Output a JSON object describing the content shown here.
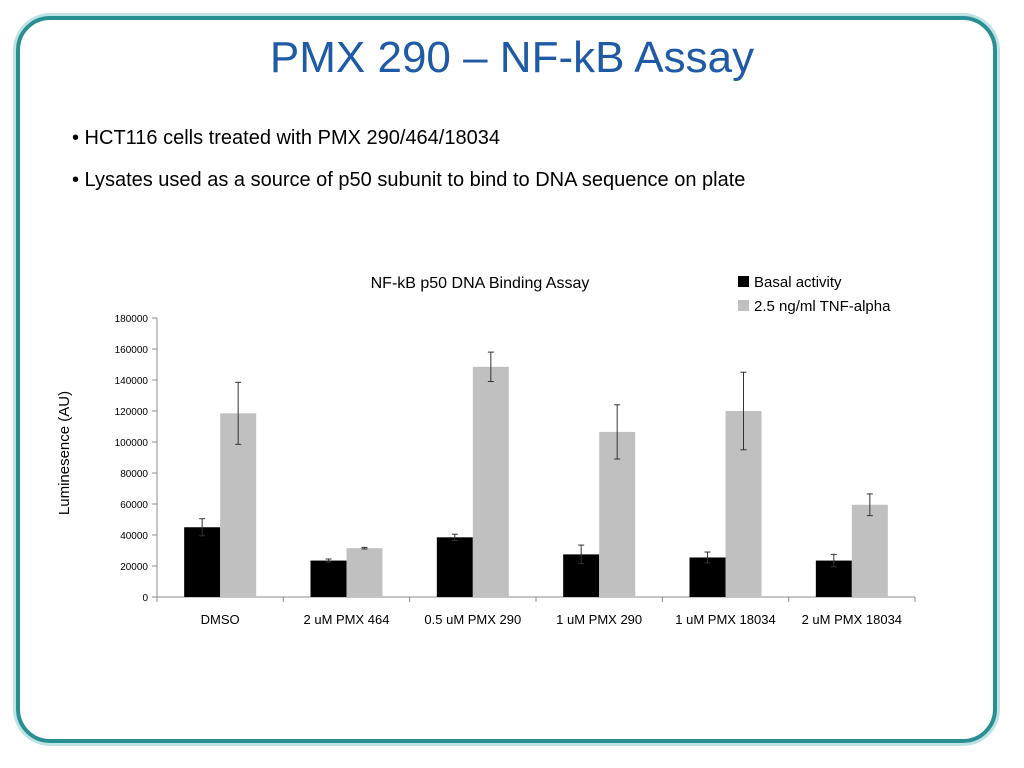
{
  "slide": {
    "title": "PMX 290 – NF-kB Assay",
    "bullets": [
      "• HCT116 cells treated with PMX 290/464/18034",
      "• Lysates used as a source of p50 subunit to bind to DNA sequence on plate"
    ],
    "accent_color": "#2a8f93",
    "title_color": "#1f5aa6"
  },
  "chart_data": {
    "type": "bar",
    "title": "NF-kB p50 DNA Binding Assay",
    "xlabel": "",
    "ylabel": "Luminesence (AU)",
    "ylim": [
      0,
      180000
    ],
    "yticks": [
      "0",
      "20000",
      "40000",
      "60000",
      "80000",
      "100000",
      "120000",
      "140000",
      "160000",
      "180000"
    ],
    "categories": [
      "DMSO",
      "2 uM PMX 464",
      "0.5 uM PMX 290",
      "1 uM PMX 290",
      "1 uM PMX 18034",
      "2 uM PMX 18034"
    ],
    "series": [
      {
        "name": "Basal activity",
        "color": "#000000",
        "values": [
          45000,
          23500,
          38500,
          27500,
          25500,
          23500
        ],
        "errors": [
          5500,
          1000,
          2000,
          6000,
          3500,
          4000
        ]
      },
      {
        "name": "2.5 ng/ml TNF-alpha",
        "color": "#c0c0c0",
        "values": [
          118500,
          31500,
          148500,
          106500,
          120000,
          59500
        ],
        "errors": [
          20000,
          500,
          9500,
          17500,
          25000,
          7000
        ]
      }
    ],
    "legend_position": "top-right",
    "grid": false
  }
}
